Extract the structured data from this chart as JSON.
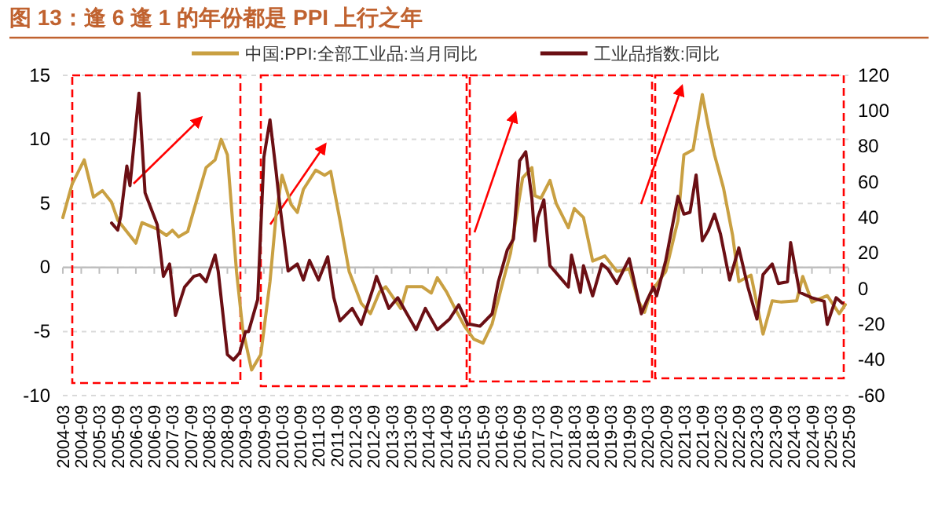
{
  "chart_data": {
    "type": "line",
    "title": "图 13：逢 6 逢 1 的年份都是 PPI 上行之年",
    "xlim": [
      "2004-03",
      "2025-09"
    ],
    "xticks": [
      "2004-03",
      "2004-09",
      "2005-03",
      "2005-09",
      "2006-03",
      "2006-09",
      "2007-03",
      "2007-09",
      "2008-03",
      "2008-09",
      "2009-03",
      "2009-09",
      "2010-03",
      "2010-09",
      "2011-03",
      "2011-09",
      "2012-03",
      "2012-09",
      "2013-03",
      "2013-09",
      "2014-03",
      "2014-09",
      "2015-03",
      "2015-09",
      "2016-03",
      "2016-09",
      "2017-03",
      "2017-09",
      "2018-03",
      "2018-09",
      "2019-03",
      "2019-09",
      "2020-03",
      "2020-09",
      "2021-03",
      "2021-09",
      "2022-03",
      "2022-09",
      "2023-03",
      "2023-09",
      "2024-03",
      "2024-09",
      "2025-03",
      "2025-09"
    ],
    "ylim": [
      -10,
      15
    ],
    "yticks": [
      -10,
      -5,
      0,
      5,
      10,
      15
    ],
    "y2lim": [
      -60,
      120
    ],
    "y2ticks": [
      -60,
      -40,
      -20,
      0,
      20,
      40,
      60,
      80,
      100,
      120
    ],
    "grid": "y",
    "legend": "top",
    "ref_lines": [
      {
        "axis": "y",
        "value": 0,
        "color": "#bfbfbf"
      }
    ],
    "series": [
      {
        "name": "中国:PPI:全部工业品:当月同比",
        "color": "#c9a042",
        "x": [
          "2004-03",
          "2004-06",
          "2004-10",
          "2005-01",
          "2005-04",
          "2005-07",
          "2005-09",
          "2006-03",
          "2006-05",
          "2006-10",
          "2007-01",
          "2007-03",
          "2007-05",
          "2007-08",
          "2007-11",
          "2008-02",
          "2008-05",
          "2008-07",
          "2008-09",
          "2008-12",
          "2009-02",
          "2009-05",
          "2009-08",
          "2009-11",
          "2010-01",
          "2010-03",
          "2010-06",
          "2010-08",
          "2010-10",
          "2011-02",
          "2011-05",
          "2011-07",
          "2011-10",
          "2012-01",
          "2012-05",
          "2012-08",
          "2012-11",
          "2013-01",
          "2013-06",
          "2013-08",
          "2014-01",
          "2014-04",
          "2014-06",
          "2014-09",
          "2014-12",
          "2015-03",
          "2015-06",
          "2015-09",
          "2015-12",
          "2016-03",
          "2016-06",
          "2016-10",
          "2017-01",
          "2017-02",
          "2017-04",
          "2017-07",
          "2017-09",
          "2018-01",
          "2018-03",
          "2018-06",
          "2018-09",
          "2019-01",
          "2019-05",
          "2019-09",
          "2019-12",
          "2020-02",
          "2020-04",
          "2020-09",
          "2021-01",
          "2021-03",
          "2021-06",
          "2021-09",
          "2021-11",
          "2022-01",
          "2022-04",
          "2022-07",
          "2022-09",
          "2023-01",
          "2023-05",
          "2023-08",
          "2023-11",
          "2024-04",
          "2024-06",
          "2024-09",
          "2025-02",
          "2025-06",
          "2025-08"
        ],
        "values": [
          3.9,
          6.5,
          8.4,
          5.5,
          6.0,
          5.1,
          3.7,
          1.9,
          3.5,
          3.0,
          2.5,
          2.9,
          2.4,
          2.8,
          5.3,
          7.8,
          8.4,
          10.0,
          8.8,
          -0.3,
          -4.8,
          -8.0,
          -6.8,
          -1.1,
          4.1,
          7.2,
          4.9,
          4.3,
          6.1,
          7.6,
          7.2,
          7.5,
          3.7,
          -0.3,
          -2.8,
          -3.6,
          -1.9,
          -1.5,
          -3.2,
          -1.5,
          -1.5,
          -2.0,
          -0.8,
          -1.9,
          -3.3,
          -4.6,
          -5.6,
          -5.9,
          -4.4,
          -1.6,
          1.1,
          7.0,
          7.8,
          5.6,
          5.4,
          6.8,
          5.0,
          3.1,
          4.6,
          3.9,
          0.5,
          0.9,
          -0.3,
          -0.1,
          -2.6,
          -3.5,
          -2.0,
          -0.3,
          3.7,
          8.8,
          9.2,
          13.5,
          11.0,
          8.8,
          6.2,
          2.5,
          -1.1,
          -0.6,
          -5.2,
          -2.6,
          -2.7,
          -2.6,
          -0.7,
          -2.7,
          -2.2,
          -3.6,
          -2.9
        ]
      },
      {
        "name": "工业品指数:同比",
        "color": "#6b0f14",
        "axis": "y2",
        "x": [
          "2005-07",
          "2005-09",
          "2005-10",
          "2005-12",
          "2006-01",
          "2006-04",
          "2006-06",
          "2006-10",
          "2006-12",
          "2007-02",
          "2007-04",
          "2007-07",
          "2007-10",
          "2007-12",
          "2008-02",
          "2008-05",
          "2008-06",
          "2008-09",
          "2008-11",
          "2009-01",
          "2009-03",
          "2009-04",
          "2009-07",
          "2009-09",
          "2009-11",
          "2010-01",
          "2010-02",
          "2010-05",
          "2010-08",
          "2010-10",
          "2010-12",
          "2011-03",
          "2011-06",
          "2011-08",
          "2011-10",
          "2012-02",
          "2012-05",
          "2012-09",
          "2012-10",
          "2013-02",
          "2013-05",
          "2013-08",
          "2013-11",
          "2014-02",
          "2014-06",
          "2014-10",
          "2015-01",
          "2015-04",
          "2015-05",
          "2015-08",
          "2015-12",
          "2016-02",
          "2016-05",
          "2016-07",
          "2016-09",
          "2016-11",
          "2017-01",
          "2017-02",
          "2017-03",
          "2017-05",
          "2017-07",
          "2017-10",
          "2018-01",
          "2018-02",
          "2018-05",
          "2018-06",
          "2018-09",
          "2018-12",
          "2019-02",
          "2019-05",
          "2019-09",
          "2020-01",
          "2020-03",
          "2020-05",
          "2020-06",
          "2020-09",
          "2021-01",
          "2021-03",
          "2021-05",
          "2021-07",
          "2021-09",
          "2021-11",
          "2022-01",
          "2022-03",
          "2022-06",
          "2022-09",
          "2022-12",
          "2023-03",
          "2023-05",
          "2023-08",
          "2023-10",
          "2024-01",
          "2024-02",
          "2024-05",
          "2024-09",
          "2025-01",
          "2025-02",
          "2025-05",
          "2025-07"
        ],
        "values": [
          37,
          33,
          41,
          69,
          58,
          110,
          54,
          36,
          7,
          14,
          -15,
          1,
          7,
          8,
          4,
          19,
          10,
          -37,
          -40,
          -36,
          -24,
          -24,
          -6,
          74,
          95,
          66,
          50,
          10,
          14,
          5,
          16,
          5,
          18,
          -5,
          -18,
          -11,
          -20,
          1,
          7,
          -11,
          -5,
          -14,
          -23,
          -11,
          -23,
          -17,
          -9,
          -20,
          -20,
          -21,
          -14,
          4,
          22,
          28,
          72,
          77,
          51,
          27,
          40,
          50,
          13,
          7,
          1,
          19,
          -2,
          13,
          -4,
          14,
          11,
          3,
          17,
          -14,
          -6,
          1,
          -4,
          16,
          52,
          42,
          43,
          64,
          27,
          33,
          42,
          31,
          5,
          23,
          1,
          -17,
          8,
          14,
          3,
          4,
          26,
          -2,
          -5,
          -7,
          -20,
          -5,
          -8
        ]
      }
    ]
  }
}
